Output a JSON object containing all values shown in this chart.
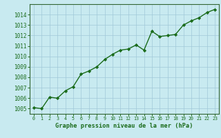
{
  "x": [
    0,
    1,
    2,
    3,
    4,
    5,
    6,
    7,
    8,
    9,
    10,
    11,
    12,
    13,
    14,
    15,
    16,
    17,
    18,
    19,
    20,
    21,
    22,
    23
  ],
  "y": [
    1005.1,
    1005.0,
    1006.1,
    1006.0,
    1006.7,
    1007.1,
    1008.3,
    1008.6,
    1009.0,
    1009.7,
    1010.2,
    1010.6,
    1010.7,
    1011.1,
    1010.6,
    1012.4,
    1011.9,
    1012.0,
    1012.1,
    1013.0,
    1013.4,
    1013.7,
    1014.2,
    1014.5
  ],
  "line_color": "#1a6b1a",
  "marker_color": "#1a6b1a",
  "bg_color": "#c8eaf0",
  "grid_color": "#a0c8d8",
  "xlabel": "Graphe pression niveau de la mer (hPa)",
  "xlabel_color": "#1a6b1a",
  "tick_color": "#1a6b1a",
  "ylim": [
    1004.5,
    1015.0
  ],
  "yticks": [
    1005,
    1006,
    1007,
    1008,
    1009,
    1010,
    1011,
    1012,
    1013,
    1014
  ],
  "xlim": [
    -0.5,
    23.5
  ],
  "xticks": [
    0,
    1,
    2,
    3,
    4,
    5,
    6,
    7,
    8,
    9,
    10,
    11,
    12,
    13,
    14,
    15,
    16,
    17,
    18,
    19,
    20,
    21,
    22,
    23
  ],
  "axis_color": "#1a6b1a",
  "spine_color": "#336633"
}
